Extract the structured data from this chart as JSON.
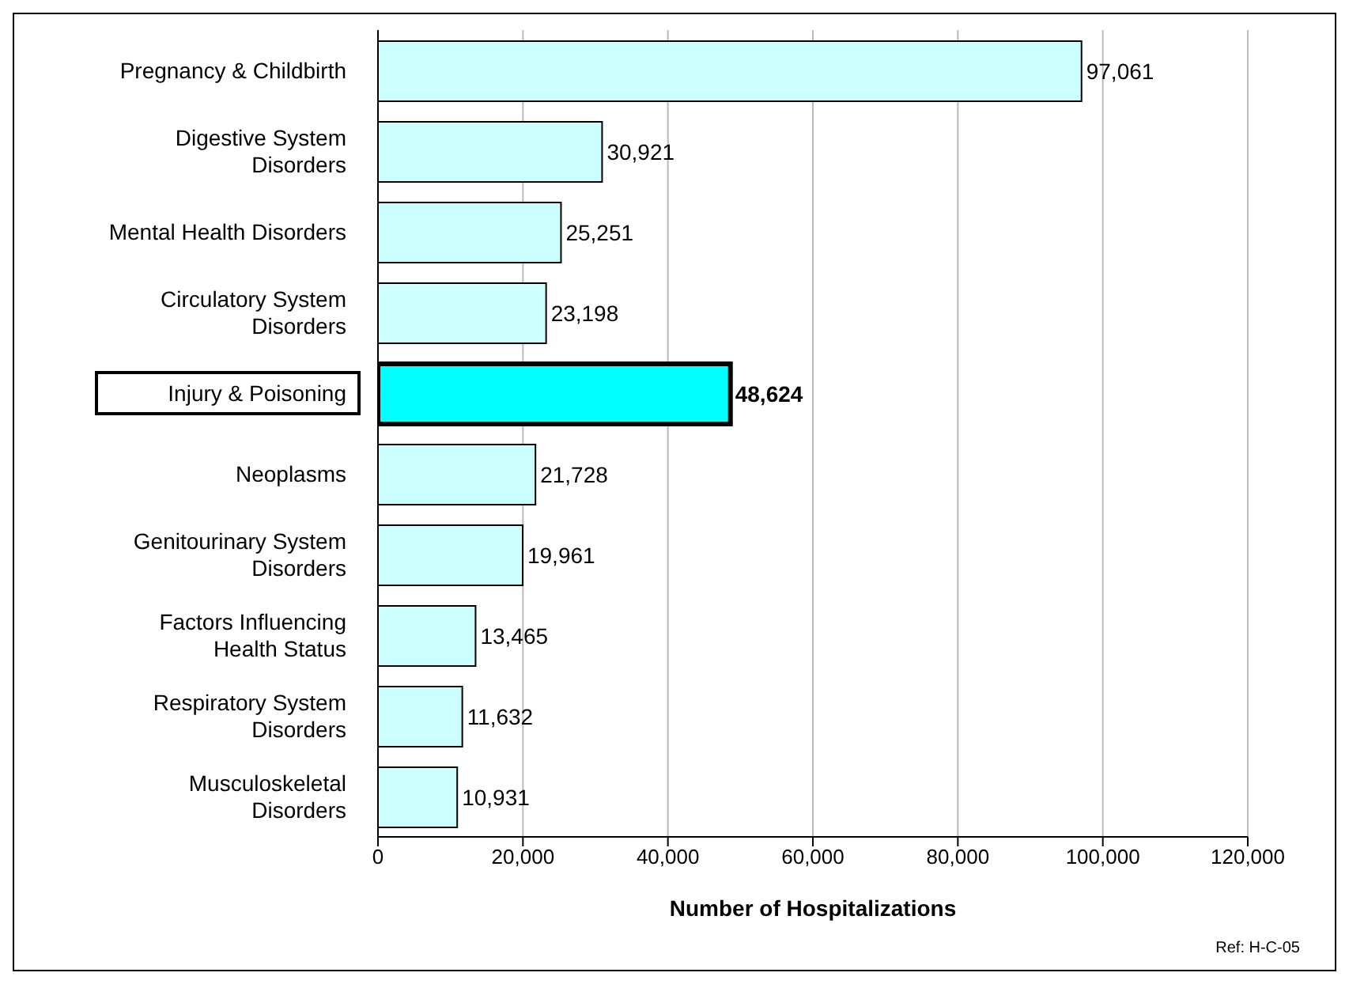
{
  "chart_data": {
    "type": "bar",
    "orientation": "horizontal",
    "categories": [
      "Pregnancy & Childbirth",
      "Digestive System Disorders",
      "Mental Health Disorders",
      "Circulatory System Disorders",
      "Injury & Poisoning",
      "Neoplasms",
      "Genitourinary System Disorders",
      "Factors Influencing Health Status",
      "Respiratory System Disorders",
      "Musculoskeletal Disorders"
    ],
    "values": [
      97061,
      30921,
      25251,
      23198,
      48624,
      21728,
      19961,
      13465,
      11632,
      10931
    ],
    "colors": [
      "#ccffff",
      "#ccffff",
      "#ccffff",
      "#ccffff",
      "#00ffff",
      "#ccffff",
      "#ccffff",
      "#ccffff",
      "#ccffff",
      "#ccffff"
    ],
    "xlim": [
      0,
      120000
    ],
    "xticks": [
      {
        "value": 0,
        "label": "0"
      },
      {
        "value": 20000,
        "label": "20,000"
      },
      {
        "value": 40000,
        "label": "40,000"
      },
      {
        "value": 60000,
        "label": "60,000"
      },
      {
        "value": 80000,
        "label": "80,000"
      },
      {
        "value": 100000,
        "label": "100,000"
      },
      {
        "value": 120000,
        "label": "120,000"
      }
    ],
    "value_labels": [
      "97,061",
      "30,921",
      "25,251",
      "23,198",
      "48,624",
      "21,728",
      "19,961",
      "13,465",
      "11,632",
      "10,931"
    ],
    "xlabel": "Number of Hospitalizations",
    "grid": "x",
    "legend": false,
    "annotations": [
      "Ref: H-C-05"
    ]
  }
}
